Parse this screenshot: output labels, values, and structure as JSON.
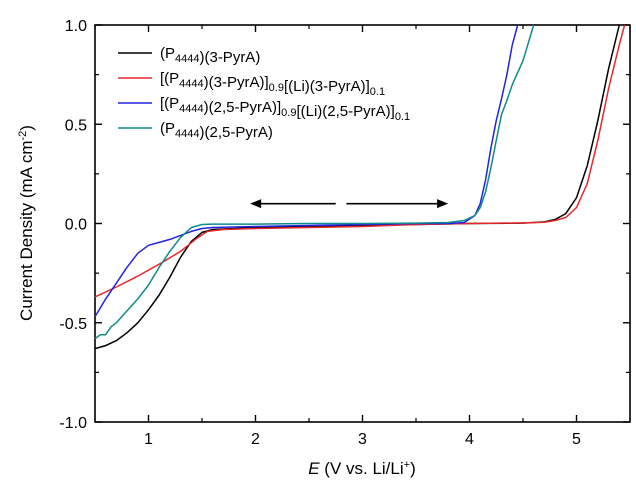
{
  "chart_data": {
    "type": "line",
    "title": "",
    "xlabel": {
      "italic": "E",
      "rest": " (V vs. Li/Li",
      "sup": "+",
      "close": ")"
    },
    "ylabel": {
      "text": "Current Density (mA cm",
      "sup": "-2",
      "close": ")"
    },
    "xlim": [
      0.5,
      5.5
    ],
    "ylim": [
      -1.0,
      1.0
    ],
    "xticks": [
      "1",
      "2",
      "3",
      "4",
      "5"
    ],
    "yticks": [
      "-1.0",
      "-0.5",
      "0.0",
      "0.5",
      "1.0"
    ],
    "legend_position": "top-left",
    "annotation": "double-headed arrow between x = 1.95 and x = 3.8 at y = 0.1",
    "series": [
      {
        "name": "(P4444)(3-PyrA)",
        "legend": [
          {
            "t": "(P"
          },
          {
            "t": "4444",
            "sub": true
          },
          {
            "t": ")(3-PyrA)"
          }
        ],
        "color": "#000000",
        "points": [
          [
            0.5,
            -0.63
          ],
          [
            0.6,
            -0.615
          ],
          [
            0.7,
            -0.59
          ],
          [
            0.8,
            -0.55
          ],
          [
            0.9,
            -0.5
          ],
          [
            1.0,
            -0.435
          ],
          [
            1.1,
            -0.36
          ],
          [
            1.2,
            -0.27
          ],
          [
            1.3,
            -0.17
          ],
          [
            1.4,
            -0.09
          ],
          [
            1.5,
            -0.045
          ],
          [
            1.6,
            -0.03
          ],
          [
            1.8,
            -0.025
          ],
          [
            2.0,
            -0.02
          ],
          [
            2.5,
            -0.015
          ],
          [
            3.0,
            -0.01
          ],
          [
            3.5,
            -0.005
          ],
          [
            4.0,
            0.0
          ],
          [
            4.5,
            0.002
          ],
          [
            4.7,
            0.008
          ],
          [
            4.8,
            0.02
          ],
          [
            4.9,
            0.05
          ],
          [
            5.0,
            0.13
          ],
          [
            5.1,
            0.29
          ],
          [
            5.2,
            0.52
          ],
          [
            5.3,
            0.78
          ],
          [
            5.4,
            1.0
          ]
        ]
      },
      {
        "name": "[(P4444)(3-PyrA)]0.9[(Li)(3-PyrA)]0.1",
        "legend": [
          {
            "t": "[(P"
          },
          {
            "t": "4444",
            "sub": true
          },
          {
            "t": ")(3-PyrA)]"
          },
          {
            "t": "0.9",
            "sub": true
          },
          {
            "t": "[(Li)(3-PyrA)]"
          },
          {
            "t": "0.1",
            "sub": true
          }
        ],
        "color": "#e8282b",
        "points": [
          [
            0.5,
            -0.37
          ],
          [
            0.7,
            -0.32
          ],
          [
            0.9,
            -0.265
          ],
          [
            1.1,
            -0.205
          ],
          [
            1.3,
            -0.14
          ],
          [
            1.45,
            -0.075
          ],
          [
            1.55,
            -0.04
          ],
          [
            1.7,
            -0.03
          ],
          [
            2.0,
            -0.025
          ],
          [
            2.5,
            -0.02
          ],
          [
            3.0,
            -0.015
          ],
          [
            3.5,
            -0.005
          ],
          [
            4.0,
            0.0
          ],
          [
            4.5,
            0.003
          ],
          [
            4.7,
            0.006
          ],
          [
            4.8,
            0.015
          ],
          [
            4.9,
            0.03
          ],
          [
            5.0,
            0.08
          ],
          [
            5.1,
            0.2
          ],
          [
            5.2,
            0.42
          ],
          [
            5.3,
            0.68
          ],
          [
            5.4,
            0.9
          ],
          [
            5.45,
            1.0
          ]
        ]
      },
      {
        "name": "[(P4444)(2,5-PyrA)]0.9[(Li)(2,5-PyrA)]0.1",
        "legend": [
          {
            "t": "[(P"
          },
          {
            "t": "4444",
            "sub": true
          },
          {
            "t": ")(2,5-PyrA)]"
          },
          {
            "t": "0.9",
            "sub": true
          },
          {
            "t": "[(Li)(2,5-PyrA)]"
          },
          {
            "t": "0.1",
            "sub": true
          }
        ],
        "color": "#2323e6",
        "points": [
          [
            0.5,
            -0.47
          ],
          [
            0.6,
            -0.38
          ],
          [
            0.7,
            -0.3
          ],
          [
            0.8,
            -0.22
          ],
          [
            0.9,
            -0.15
          ],
          [
            1.0,
            -0.11
          ],
          [
            1.1,
            -0.095
          ],
          [
            1.2,
            -0.08
          ],
          [
            1.3,
            -0.06
          ],
          [
            1.4,
            -0.04
          ],
          [
            1.5,
            -0.025
          ],
          [
            1.6,
            -0.02
          ],
          [
            2.0,
            -0.015
          ],
          [
            2.5,
            -0.01
          ],
          [
            3.0,
            -0.005
          ],
          [
            3.5,
            0.0
          ],
          [
            3.8,
            0.0
          ],
          [
            3.95,
            0.005
          ],
          [
            4.05,
            0.04
          ],
          [
            4.1,
            0.1
          ],
          [
            4.15,
            0.22
          ],
          [
            4.2,
            0.38
          ],
          [
            4.25,
            0.52
          ],
          [
            4.3,
            0.63
          ],
          [
            4.35,
            0.75
          ],
          [
            4.4,
            0.9
          ],
          [
            4.45,
            1.0
          ]
        ]
      },
      {
        "name": "(P4444)(2,5-PyrA)",
        "legend": [
          {
            "t": "(P"
          },
          {
            "t": "4444",
            "sub": true
          },
          {
            "t": ")(2,5-PyrA)"
          }
        ],
        "color": "#108a8a",
        "points": [
          [
            0.5,
            -0.58
          ],
          [
            0.55,
            -0.56
          ],
          [
            0.6,
            -0.56
          ],
          [
            0.65,
            -0.52
          ],
          [
            0.7,
            -0.5
          ],
          [
            0.8,
            -0.44
          ],
          [
            0.9,
            -0.38
          ],
          [
            1.0,
            -0.31
          ],
          [
            1.1,
            -0.22
          ],
          [
            1.2,
            -0.14
          ],
          [
            1.3,
            -0.07
          ],
          [
            1.4,
            -0.02
          ],
          [
            1.5,
            -0.005
          ],
          [
            1.6,
            -0.003
          ],
          [
            2.0,
            -0.003
          ],
          [
            2.5,
            0.0
          ],
          [
            3.0,
            0.0
          ],
          [
            3.5,
            0.002
          ],
          [
            3.8,
            0.005
          ],
          [
            3.95,
            0.015
          ],
          [
            4.05,
            0.04
          ],
          [
            4.1,
            0.08
          ],
          [
            4.15,
            0.16
          ],
          [
            4.2,
            0.28
          ],
          [
            4.25,
            0.42
          ],
          [
            4.3,
            0.55
          ],
          [
            4.35,
            0.62
          ],
          [
            4.4,
            0.7
          ],
          [
            4.5,
            0.82
          ],
          [
            4.6,
            1.0
          ]
        ]
      }
    ]
  }
}
